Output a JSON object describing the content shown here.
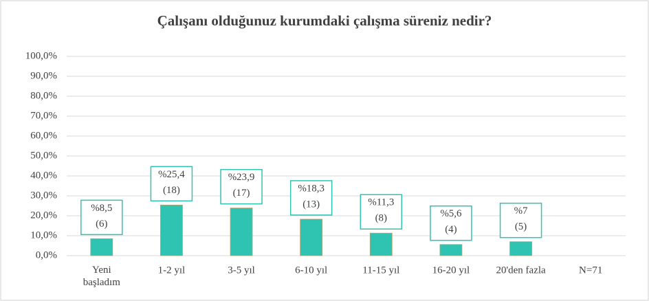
{
  "chart_data": {
    "type": "bar",
    "title": "Çalışanı olduğunuz kurumdaki çalışma süreniz nedir?",
    "categories": [
      "Yeni\nbaşladım",
      "1-2 yıl",
      "3-5 yıl",
      "6-10 yıl",
      "11-15 yıl",
      "16-20 yıl",
      "20'den fazla",
      "N=71"
    ],
    "values": [
      8.5,
      25.4,
      23.9,
      18.3,
      11.3,
      5.6,
      7,
      null
    ],
    "value_labels": [
      [
        "%8,5",
        "(6)"
      ],
      [
        "%25,4",
        "(18)"
      ],
      [
        "%23,9",
        "(17)"
      ],
      [
        "%18,3",
        "(13)"
      ],
      [
        "%11,3",
        "(8)"
      ],
      [
        "%5,6",
        "(4)"
      ],
      [
        "%7",
        "(5)"
      ],
      null
    ],
    "color": "#2fc4b2",
    "ylim": [
      0,
      100
    ],
    "yticks": [
      {
        "value": 0,
        "label": "0,0%"
      },
      {
        "value": 10,
        "label": "10,0%"
      },
      {
        "value": 20,
        "label": "20,0%"
      },
      {
        "value": 30,
        "label": "30,0%"
      },
      {
        "value": 40,
        "label": "40,0%"
      },
      {
        "value": 50,
        "label": "50,0%"
      },
      {
        "value": 60,
        "label": "60,0%"
      },
      {
        "value": 70,
        "label": "70,0%"
      },
      {
        "value": 80,
        "label": "80,0%"
      },
      {
        "value": 90,
        "label": "90,0%"
      },
      {
        "value": 100,
        "label": "100,0%"
      }
    ],
    "grid": true
  }
}
